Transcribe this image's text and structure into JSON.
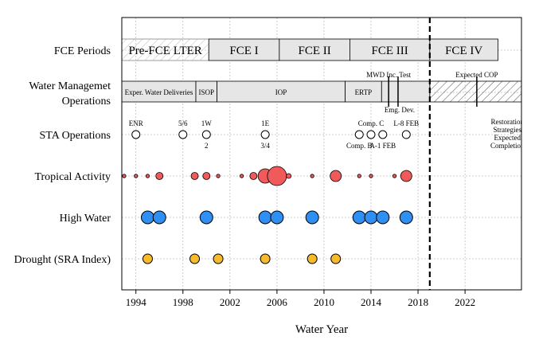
{
  "chart_data": {
    "type": "scatter",
    "title": "",
    "xlabel": "Water Year",
    "xlim": [
      1992.8,
      2026.8
    ],
    "xticks": [
      1994,
      1998,
      2002,
      2006,
      2010,
      2014,
      2018,
      2022
    ],
    "grid": true,
    "divider_year": 2019,
    "rows": [
      "FCE Periods",
      "Water Managemet Operations",
      "STA Operations",
      "Tropical Activity",
      "High Water",
      "Drought (SRA Index)"
    ],
    "fce_periods": [
      {
        "label": "Pre-FCE LTER",
        "start": 1992.8,
        "end": 2000.2,
        "hatched": true
      },
      {
        "label": "FCE I",
        "start": 2000.2,
        "end": 2006.2
      },
      {
        "label": "FCE II",
        "start": 2006.2,
        "end": 2012.2
      },
      {
        "label": "FCE III",
        "start": 2012.2,
        "end": 2019.0
      },
      {
        "label": "FCE IV",
        "start": 2019.0,
        "end": 2024.8
      }
    ],
    "water_operations": [
      {
        "label": "Exper. Water Deliveries",
        "start": 1992.8,
        "end": 1999.1
      },
      {
        "label": "ISOP",
        "start": 1999.1,
        "end": 2000.9
      },
      {
        "label": "IOP",
        "start": 2000.9,
        "end": 2011.8
      },
      {
        "label": "ERTP",
        "start": 2011.8,
        "end": 2014.9
      },
      {
        "label": "",
        "start": 2014.9,
        "end": 2019.0
      },
      {
        "label": "",
        "start": 2019.0,
        "end": 2026.8,
        "hatched": true
      }
    ],
    "water_markers": [
      {
        "label": "MWD Inc. Test",
        "year": 2015.5,
        "label_pos": "above"
      },
      {
        "label": "Emg. Dev.",
        "year": 2016.3,
        "label_pos": "below"
      },
      {
        "label": "Expected COP",
        "year": 2023.0,
        "label_pos": "above"
      }
    ],
    "sta_operations": [
      {
        "year": 1994,
        "label_above": "ENR",
        "label_below": ""
      },
      {
        "year": 1998,
        "label_above": "5/6",
        "label_below": ""
      },
      {
        "year": 2000,
        "label_above": "1W",
        "label_below": "2"
      },
      {
        "year": 2005,
        "label_above": "1E",
        "label_below": "3/4"
      },
      {
        "year": 2013,
        "label_above": "",
        "label_below": "Comp. B"
      },
      {
        "year": 2014,
        "label_above": "Comp. C",
        "label_below": ""
      },
      {
        "year": 2015,
        "label_above": "",
        "label_below": "A-1 FEB"
      },
      {
        "year": 2017,
        "label_above": "L-8 FEB",
        "label_below": ""
      }
    ],
    "sta_note": [
      "Restoration",
      "Strategies",
      "Expected",
      "Completion"
    ],
    "sta_note_year": 2025.6,
    "tropical_activity": [
      {
        "year": 1993,
        "size": 1
      },
      {
        "year": 1994,
        "size": 1
      },
      {
        "year": 1995,
        "size": 1
      },
      {
        "year": 1996,
        "size": 2
      },
      {
        "year": 1999,
        "size": 2
      },
      {
        "year": 2000,
        "size": 2
      },
      {
        "year": 2001,
        "size": 1
      },
      {
        "year": 2003,
        "size": 1
      },
      {
        "year": 2004,
        "size": 2
      },
      {
        "year": 2005,
        "size": 4
      },
      {
        "year": 2006,
        "size": 5
      },
      {
        "year": 2007,
        "size": 1.5
      },
      {
        "year": 2009,
        "size": 1
      },
      {
        "year": 2011,
        "size": 3
      },
      {
        "year": 2013,
        "size": 1
      },
      {
        "year": 2014,
        "size": 1
      },
      {
        "year": 2016,
        "size": 1
      },
      {
        "year": 2017,
        "size": 3
      }
    ],
    "high_water": [
      1995,
      1996,
      2000,
      2005,
      2006,
      2009,
      2013,
      2014,
      2015,
      2017
    ],
    "drought": [
      1995,
      1999,
      2001,
      2005,
      2009,
      2011
    ],
    "colors": {
      "period_fill": "#e6e6e6",
      "tropical": "#f05a5a",
      "high_water": "#2f8ff2",
      "drought": "#f6ba2c",
      "sta": "#ffffff",
      "divider": "#000000"
    }
  }
}
